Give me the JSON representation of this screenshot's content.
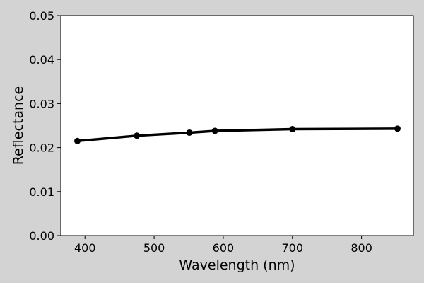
{
  "chart_data": {
    "type": "line",
    "title": "",
    "xlabel": "Wavelength (nm)",
    "ylabel": "Reflectance",
    "xlim": [
      365,
      875
    ],
    "ylim": [
      0.0,
      0.05
    ],
    "xticks": [
      400,
      500,
      600,
      700,
      800
    ],
    "xtick_labels": [
      "400",
      "500",
      "600",
      "700",
      "800"
    ],
    "yticks": [
      0.0,
      0.01,
      0.02,
      0.03,
      0.04,
      0.05
    ],
    "ytick_labels": [
      "0.00",
      "0.01",
      "0.02",
      "0.03",
      "0.04",
      "0.05"
    ],
    "grid": false,
    "legend": "none",
    "series": [
      {
        "x": [
          389,
          475,
          551,
          588,
          700,
          852
        ],
        "y": [
          0.0215,
          0.0227,
          0.0234,
          0.0238,
          0.0242,
          0.0243
        ],
        "color": "#000000",
        "marker": "circle"
      }
    ]
  },
  "colors": {
    "figure_background": "#d3d3d3",
    "plot_background": "#ffffff",
    "line": "#000000"
  }
}
